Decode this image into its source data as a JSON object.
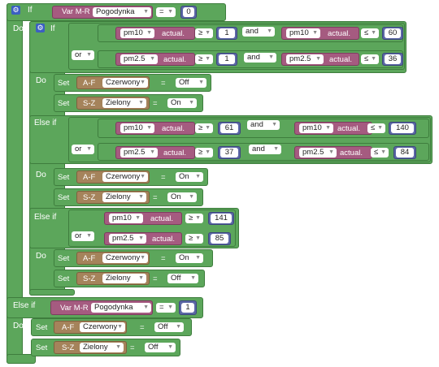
{
  "kw": {
    "if": "If",
    "do": "Do",
    "else_if": "Else if",
    "set": "Set",
    "or": "or",
    "and": "and",
    "actual": "actual."
  },
  "icons": {
    "mutator": "gear-icon",
    "dropdown": "chevron-down-icon"
  },
  "colors": {
    "logic": "#5ca65b",
    "variable": "#a55b80",
    "actor": "#a5835b",
    "value": "#5b67a5"
  },
  "blocks": {
    "cond1": {
      "prefix": "Var M-R",
      "var": "Pogodynka",
      "op": "=",
      "value": "0"
    },
    "inner": {
      "c1": {
        "left": {
          "sensor": "pm10",
          "op": "≥",
          "val": "1"
        },
        "right": {
          "sensor": "pm10",
          "op": "≤",
          "val": "60"
        }
      },
      "c2": {
        "left": {
          "sensor": "pm2.5",
          "op": "≥",
          "val": "1"
        },
        "right": {
          "sensor": "pm2.5",
          "op": "≤",
          "val": "36"
        }
      },
      "do": [
        {
          "prefix": "A-F",
          "name": "Czerwony",
          "value": "Off"
        },
        {
          "prefix": "S-Z",
          "name": "Zielony",
          "value": "On"
        }
      ],
      "e1c1": {
        "left": {
          "sensor": "pm10",
          "op": "≥",
          "val": "61"
        },
        "right": {
          "sensor": "pm10",
          "op": "≤",
          "val": "140"
        }
      },
      "e1c2": {
        "left": {
          "sensor": "pm2.5",
          "op": "≥",
          "val": "37"
        },
        "right": {
          "sensor": "pm2.5",
          "op": "≤",
          "val": "84"
        }
      },
      "e1do": [
        {
          "prefix": "A-F",
          "name": "Czerwony",
          "value": "On"
        },
        {
          "prefix": "S-Z",
          "name": "Zielony",
          "value": "On"
        }
      ],
      "e2c1": {
        "sensor": "pm10",
        "op": "≥",
        "val": "141"
      },
      "e2c2": {
        "sensor": "pm2.5",
        "op": "≥",
        "val": "85"
      },
      "e2do": [
        {
          "prefix": "A-F",
          "name": "Czerwony",
          "value": "On"
        },
        {
          "prefix": "S-Z",
          "name": "Zielony",
          "value": "Off"
        }
      ]
    },
    "cond2": {
      "prefix": "Var M-R",
      "var": "Pogodynka",
      "op": "=",
      "value": "1"
    },
    "do2": [
      {
        "prefix": "A-F",
        "name": "Czerwony",
        "value": "Off"
      },
      {
        "prefix": "S-Z",
        "name": "Zielony",
        "value": "Off"
      }
    ]
  }
}
